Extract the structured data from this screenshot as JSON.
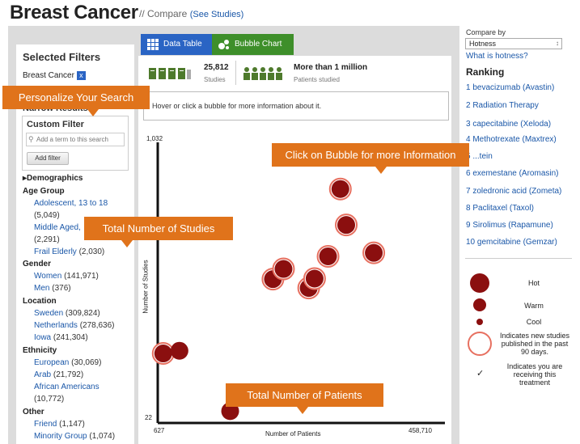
{
  "header": {
    "title": "Breast Cancer",
    "subtitle": "// Compare",
    "see_studies": "(See Studies)"
  },
  "filters": {
    "title": "Selected Filters",
    "active_filter": "Breast Cancer",
    "active_filter_close": "x",
    "narrow_results": "Narrow Results:",
    "custom_filter_label": "Custom Filter",
    "custom_filter_placeholder": "Add a term to this search",
    "add_filter_button": "Add filter",
    "demographics": "Demographics",
    "groups": [
      {
        "title": "Age Group",
        "items": [
          {
            "label": "Adolescent, 13 to 18",
            "count": ""
          },
          {
            "label": "",
            "count": "(5,049)"
          },
          {
            "label": "Middle Aged,",
            "count": ""
          },
          {
            "label": "",
            "count": "(2,291)"
          },
          {
            "label": "Frail Elderly",
            "count": "(2,030)"
          }
        ]
      },
      {
        "title": "Gender",
        "items": [
          {
            "label": "Women",
            "count": "(141,971)"
          },
          {
            "label": "Men",
            "count": "(376)"
          }
        ]
      },
      {
        "title": "Location",
        "items": [
          {
            "label": "Sweden",
            "count": "(309,824)"
          },
          {
            "label": "Netherlands",
            "count": "(278,636)"
          },
          {
            "label": "Iowa",
            "count": "(241,304)"
          }
        ]
      },
      {
        "title": "Ethnicity",
        "items": [
          {
            "label": "European",
            "count": "(30,069)"
          },
          {
            "label": "Arab",
            "count": "(21,792)"
          },
          {
            "label": "African Americans",
            "count": ""
          },
          {
            "label": "",
            "count": "(10,772)"
          }
        ]
      },
      {
        "title": "Other",
        "items": [
          {
            "label": "Friend",
            "count": "(1,147)"
          },
          {
            "label": "Minority Group",
            "count": "(1,074)"
          }
        ]
      }
    ]
  },
  "tabs": {
    "data_table": "Data Table",
    "bubble_chart": "Bubble Chart"
  },
  "stats": {
    "studies_count": "25,812",
    "studies_label": "Studies",
    "patients_count": "More than 1 million",
    "patients_label": "Patients studied"
  },
  "hover_text": "Hover or click a bubble for more information about it.",
  "chart_data": {
    "type": "scatter",
    "xlabel": "Number of Patients",
    "ylabel": "Number of Studies",
    "x_tick_labels": [
      "627",
      "458,710"
    ],
    "y_tick_labels": [
      "22",
      "1,032"
    ],
    "xlim": [
      627,
      458710
    ],
    "ylim": [
      22,
      1032
    ],
    "points": [
      {
        "x": 5800,
        "y": 245,
        "level": "hot",
        "new": true
      },
      {
        "x": 33500,
        "y": 255,
        "level": "hot",
        "new": false
      },
      {
        "x": 120000,
        "y": 30,
        "level": "hot",
        "new": false
      },
      {
        "x": 193000,
        "y": 522,
        "level": "hot",
        "new": true
      },
      {
        "x": 211000,
        "y": 560,
        "level": "hot",
        "new": true
      },
      {
        "x": 254000,
        "y": 489,
        "level": "hot",
        "new": true
      },
      {
        "x": 264000,
        "y": 524,
        "level": "hot",
        "new": true
      },
      {
        "x": 287000,
        "y": 607,
        "level": "hot",
        "new": true
      },
      {
        "x": 308000,
        "y": 858,
        "level": "hot",
        "new": true
      },
      {
        "x": 318000,
        "y": 724,
        "level": "hot",
        "new": true
      },
      {
        "x": 365000,
        "y": 620,
        "level": "hot",
        "new": true
      }
    ]
  },
  "compare": {
    "label": "Compare by",
    "selected": "Hotness",
    "what_link": "What is hotness?"
  },
  "ranking": {
    "title": "Ranking",
    "items": [
      "1 bevacizumab (Avastin)",
      "2 Radiation Therapy",
      "3 capecitabine (Xeloda)",
      "4 Methotrexate (Maxtrex)",
      "5 ...tein",
      "6 exemestane (Aromasin)",
      "7 zoledronic acid (Zometa)",
      "8 Paclitaxel (Taxol)",
      "9 Sirolimus (Rapamune)",
      "10 gemcitabine (Gemzar)"
    ]
  },
  "legend": {
    "hot": "Hot",
    "warm": "Warm",
    "cool": "Cool",
    "new_studies": "Indicates new studies published in the past 90 days.",
    "receiving": "Indicates you are receiving this treatment",
    "check": "✓"
  },
  "callouts": {
    "personalize": "Personalize Your Search",
    "click_bubble": "Click on Bubble for more Information",
    "total_studies": "Total Number of Studies",
    "total_patients": "Total Number of Patients"
  },
  "colors": {
    "accent_orange": "#e0731b",
    "link_blue": "#1a57a8",
    "data_table_blue": "#2a64c4",
    "bubble_green": "#3e8f2a",
    "hot_red": "#8b0f0f",
    "new_ring": "#e77060"
  }
}
